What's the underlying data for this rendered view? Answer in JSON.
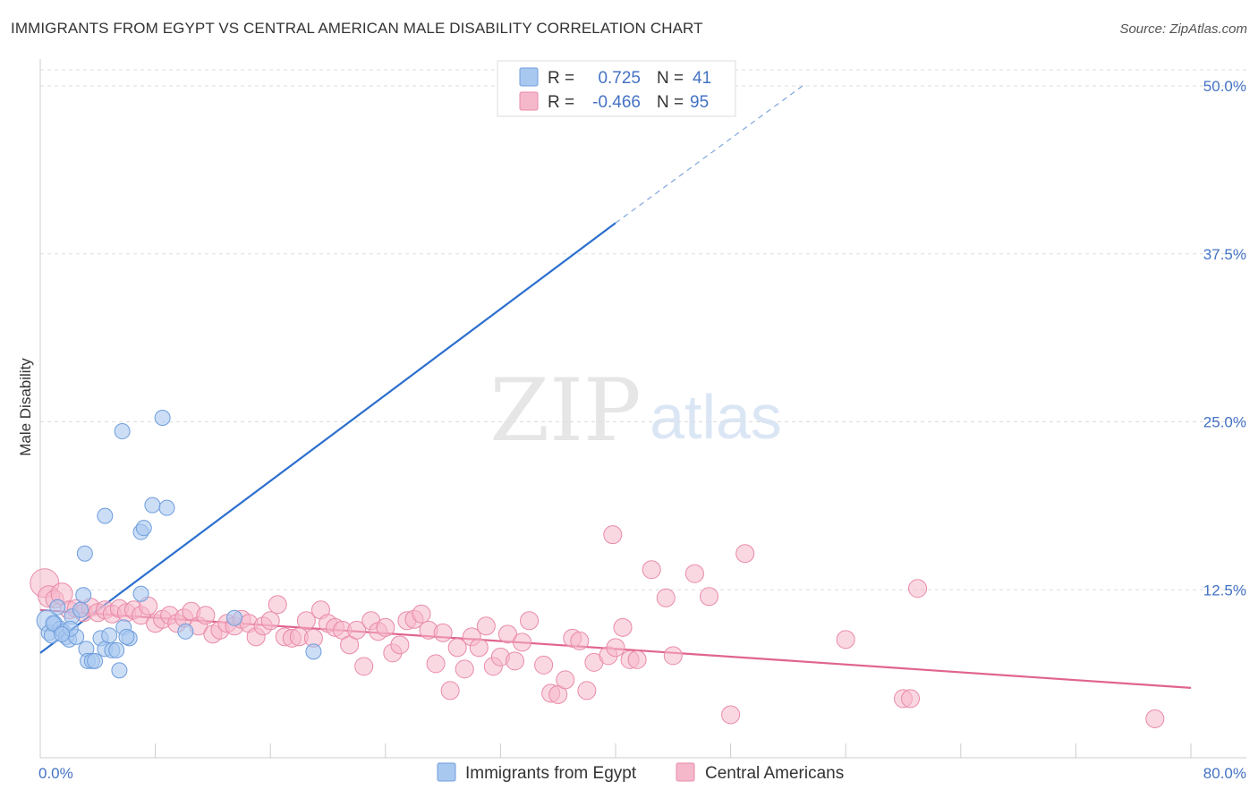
{
  "title": "IMMIGRANTS FROM EGYPT VS CENTRAL AMERICAN MALE DISABILITY CORRELATION CHART",
  "source": "Source: ZipAtlas.com",
  "watermark": {
    "zip": "ZIP",
    "atlas": "atlas"
  },
  "legend": {
    "rows": [
      {
        "r_label": "R =",
        "r_value": "0.725",
        "n_label": "N =",
        "n_value": "41",
        "color": "#a9c8f0"
      },
      {
        "r_label": "R =",
        "r_value": "-0.466",
        "n_label": "N =",
        "n_value": "95",
        "color": "#f5b8cb"
      }
    ]
  },
  "colors": {
    "blue_fill": "#a9c8f0",
    "blue_stroke": "#6f9ddc",
    "blue_line": "#2b6fce",
    "pink_fill": "#f5b8cb",
    "pink_stroke": "#e98aa8",
    "pink_line": "#e0648f",
    "grid": "#dddddd",
    "tick_text": "#4472c4"
  },
  "chart_data": {
    "type": "scatter",
    "title": "IMMIGRANTS FROM EGYPT VS CENTRAL AMERICAN MALE DISABILITY CORRELATION CHART",
    "xlabel": "",
    "ylabel": "Male Disability",
    "xlim": [
      0,
      80
    ],
    "ylim": [
      0,
      52
    ],
    "x_tick_labels": [
      "0.0%",
      "80.0%"
    ],
    "y_ticks": [
      12.5,
      25.0,
      37.5,
      50.0
    ],
    "y_tick_labels": [
      "12.5%",
      "25.0%",
      "37.5%",
      "50.0%"
    ],
    "grid": "horizontal dashed",
    "legend_position": "top-center",
    "series": [
      {
        "name": "Immigrants from Egypt",
        "color": "#a9c8f0",
        "trend": {
          "x": [
            0,
            40
          ],
          "y": [
            7.8,
            39.8
          ],
          "dashed_to": [
            53,
            50.0
          ]
        },
        "points": [
          [
            0.5,
            10.2,
            14
          ],
          [
            0.6,
            9.3,
            10
          ],
          [
            0.8,
            9.1,
            10
          ],
          [
            1.0,
            10.0,
            10
          ],
          [
            1.2,
            11.2,
            10
          ],
          [
            1.4,
            9.6,
            10
          ],
          [
            1.6,
            9.4,
            10
          ],
          [
            1.8,
            9.0,
            10
          ],
          [
            2.0,
            8.8,
            10
          ],
          [
            2.2,
            10.5,
            10
          ],
          [
            2.5,
            9.0,
            10
          ],
          [
            2.8,
            11.0,
            10
          ],
          [
            3.0,
            12.1,
            10
          ],
          [
            3.2,
            8.1,
            10
          ],
          [
            3.3,
            7.2,
            10
          ],
          [
            3.6,
            7.2,
            10
          ],
          [
            3.8,
            7.2,
            10
          ],
          [
            4.2,
            8.9,
            10
          ],
          [
            4.5,
            8.1,
            10
          ],
          [
            4.8,
            9.1,
            10
          ],
          [
            5.0,
            8.0,
            10
          ],
          [
            5.3,
            8.0,
            10
          ],
          [
            5.5,
            6.5,
            10
          ],
          [
            5.8,
            9.7,
            10
          ],
          [
            6.2,
            8.9,
            10
          ],
          [
            4.5,
            18.0,
            10
          ],
          [
            3.1,
            15.2,
            10
          ],
          [
            5.7,
            24.3,
            10
          ],
          [
            8.5,
            25.3,
            10
          ],
          [
            7.8,
            18.8,
            10
          ],
          [
            8.8,
            18.6,
            10
          ],
          [
            7.0,
            16.8,
            10
          ],
          [
            7.2,
            17.1,
            10
          ],
          [
            7.0,
            12.2,
            10
          ],
          [
            10.1,
            9.4,
            10
          ],
          [
            13.5,
            10.4,
            10
          ],
          [
            19.0,
            7.9,
            10
          ],
          [
            0.9,
            10.0,
            10
          ],
          [
            2.1,
            9.6,
            10
          ],
          [
            1.5,
            9.2,
            10
          ],
          [
            6.0,
            9.0,
            10
          ]
        ]
      },
      {
        "name": "Central Americans",
        "color": "#f5b8cb",
        "trend": {
          "x": [
            0,
            80
          ],
          "y": [
            11.0,
            5.2
          ]
        },
        "points": [
          [
            0.3,
            13.0,
            16
          ],
          [
            0.6,
            12.0,
            12
          ],
          [
            1.0,
            11.8,
            10
          ],
          [
            1.5,
            12.2,
            12
          ],
          [
            2.0,
            11.0,
            10
          ],
          [
            2.5,
            11.1,
            10
          ],
          [
            3.0,
            10.8,
            10
          ],
          [
            3.5,
            11.2,
            10
          ],
          [
            4.0,
            10.8,
            10
          ],
          [
            4.5,
            11.0,
            10
          ],
          [
            5.0,
            10.7,
            10
          ],
          [
            5.5,
            11.1,
            10
          ],
          [
            6.0,
            10.8,
            10
          ],
          [
            6.5,
            11.0,
            10
          ],
          [
            7.0,
            10.6,
            10
          ],
          [
            7.5,
            11.3,
            10
          ],
          [
            8.0,
            10.0,
            10
          ],
          [
            8.5,
            10.3,
            10
          ],
          [
            9.0,
            10.6,
            10
          ],
          [
            9.5,
            10.0,
            10
          ],
          [
            10.0,
            10.4,
            10
          ],
          [
            10.5,
            10.9,
            10
          ],
          [
            11.0,
            9.8,
            10
          ],
          [
            11.5,
            10.6,
            10
          ],
          [
            12.0,
            9.2,
            10
          ],
          [
            12.5,
            9.5,
            10
          ],
          [
            13.0,
            10.0,
            10
          ],
          [
            13.5,
            9.8,
            10
          ],
          [
            14.0,
            10.3,
            10
          ],
          [
            14.5,
            10.0,
            10
          ],
          [
            15.0,
            9.0,
            10
          ],
          [
            15.5,
            9.8,
            10
          ],
          [
            16.0,
            10.2,
            10
          ],
          [
            16.5,
            11.4,
            10
          ],
          [
            17.0,
            9.0,
            10
          ],
          [
            17.5,
            8.9,
            10
          ],
          [
            18.0,
            9.0,
            10
          ],
          [
            18.5,
            10.2,
            10
          ],
          [
            19.0,
            8.9,
            10
          ],
          [
            19.5,
            11.0,
            10
          ],
          [
            20.0,
            10.0,
            10
          ],
          [
            20.5,
            9.7,
            10
          ],
          [
            21.0,
            9.5,
            10
          ],
          [
            21.5,
            8.4,
            10
          ],
          [
            22.0,
            9.5,
            10
          ],
          [
            22.5,
            6.8,
            10
          ],
          [
            23.0,
            10.2,
            10
          ],
          [
            23.5,
            9.4,
            10
          ],
          [
            24.0,
            9.7,
            10
          ],
          [
            24.5,
            7.8,
            10
          ],
          [
            25.0,
            8.4,
            10
          ],
          [
            25.5,
            10.2,
            10
          ],
          [
            26.0,
            10.3,
            10
          ],
          [
            26.5,
            10.7,
            10
          ],
          [
            27.0,
            9.5,
            10
          ],
          [
            27.5,
            7.0,
            10
          ],
          [
            28.0,
            9.3,
            10
          ],
          [
            28.5,
            5.0,
            10
          ],
          [
            29.0,
            8.2,
            10
          ],
          [
            29.5,
            6.6,
            10
          ],
          [
            30.0,
            9.0,
            10
          ],
          [
            30.5,
            8.2,
            10
          ],
          [
            31.0,
            9.8,
            10
          ],
          [
            31.5,
            6.8,
            10
          ],
          [
            32.0,
            7.5,
            10
          ],
          [
            32.5,
            9.2,
            10
          ],
          [
            33.0,
            7.2,
            10
          ],
          [
            33.5,
            8.6,
            10
          ],
          [
            34.0,
            10.2,
            10
          ],
          [
            35.0,
            6.9,
            10
          ],
          [
            35.5,
            4.8,
            10
          ],
          [
            36.0,
            4.7,
            10
          ],
          [
            36.5,
            5.8,
            10
          ],
          [
            37.0,
            8.9,
            10
          ],
          [
            37.5,
            8.7,
            10
          ],
          [
            38.0,
            5.0,
            10
          ],
          [
            38.5,
            7.1,
            10
          ],
          [
            39.5,
            7.6,
            10
          ],
          [
            40.0,
            8.2,
            10
          ],
          [
            40.5,
            9.7,
            10
          ],
          [
            41.0,
            7.3,
            10
          ],
          [
            41.5,
            7.3,
            10
          ],
          [
            42.5,
            14.0,
            10
          ],
          [
            43.5,
            11.9,
            10
          ],
          [
            44.0,
            7.6,
            10
          ],
          [
            39.8,
            16.6,
            10
          ],
          [
            45.5,
            13.7,
            10
          ],
          [
            46.5,
            12.0,
            10
          ],
          [
            48.0,
            3.2,
            10
          ],
          [
            49.0,
            15.2,
            10
          ],
          [
            56.0,
            8.8,
            10
          ],
          [
            60.0,
            4.4,
            10
          ],
          [
            60.5,
            4.4,
            10
          ],
          [
            61.0,
            12.6,
            10
          ],
          [
            77.5,
            2.9,
            10
          ]
        ]
      }
    ]
  }
}
